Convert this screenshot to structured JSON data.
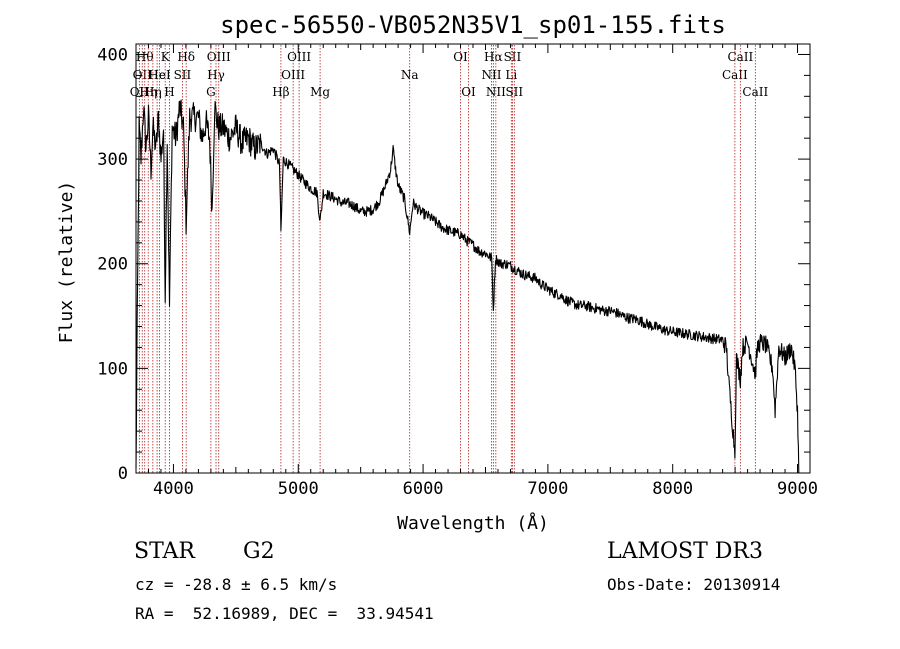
{
  "chart_data": {
    "type": "line",
    "title": "spec-56550-VB052N35V1_sp01-155.fits",
    "xlabel": "Wavelength (Å)",
    "ylabel": "Flux (relative)",
    "xlim": [
      3700,
      9100
    ],
    "ylim": [
      0,
      410
    ],
    "xticks": [
      4000,
      5000,
      6000,
      7000,
      8000,
      9000
    ],
    "yticks": [
      0,
      100,
      200,
      300,
      400
    ],
    "grid": false,
    "series": [
      {
        "name": "flux",
        "color": "#000000",
        "anchors": [
          [
            3700,
            0
          ],
          [
            3710,
            140
          ],
          [
            3725,
            330
          ],
          [
            3740,
            300
          ],
          [
            3760,
            350
          ],
          [
            3780,
            310
          ],
          [
            3800,
            340
          ],
          [
            3820,
            290
          ],
          [
            3835,
            330
          ],
          [
            3860,
            310
          ],
          [
            3880,
            340
          ],
          [
            3900,
            300
          ],
          [
            3920,
            330
          ],
          [
            3934,
            170
          ],
          [
            3950,
            320
          ],
          [
            3968,
            160
          ],
          [
            3990,
            330
          ],
          [
            4020,
            320
          ],
          [
            4050,
            350
          ],
          [
            4080,
            330
          ],
          [
            4101,
            240
          ],
          [
            4130,
            340
          ],
          [
            4160,
            340
          ],
          [
            4200,
            340
          ],
          [
            4230,
            320
          ],
          [
            4260,
            335
          ],
          [
            4290,
            320
          ],
          [
            4310,
            250
          ],
          [
            4330,
            350
          ],
          [
            4360,
            330
          ],
          [
            4400,
            330
          ],
          [
            4450,
            320
          ],
          [
            4500,
            330
          ],
          [
            4550,
            315
          ],
          [
            4600,
            320
          ],
          [
            4650,
            310
          ],
          [
            4700,
            315
          ],
          [
            4750,
            305
          ],
          [
            4800,
            310
          ],
          [
            4850,
            295
          ],
          [
            4861,
            230
          ],
          [
            4880,
            300
          ],
          [
            4920,
            295
          ],
          [
            4960,
            290
          ],
          [
            5000,
            285
          ],
          [
            5050,
            278
          ],
          [
            5100,
            272
          ],
          [
            5150,
            268
          ],
          [
            5175,
            240
          ],
          [
            5200,
            268
          ],
          [
            5250,
            265
          ],
          [
            5300,
            262
          ],
          [
            5350,
            258
          ],
          [
            5400,
            258
          ],
          [
            5450,
            255
          ],
          [
            5500,
            250
          ],
          [
            5550,
            250
          ],
          [
            5600,
            252
          ],
          [
            5650,
            260
          ],
          [
            5700,
            275
          ],
          [
            5740,
            290
          ],
          [
            5760,
            310
          ],
          [
            5780,
            290
          ],
          [
            5800,
            275
          ],
          [
            5850,
            262
          ],
          [
            5893,
            230
          ],
          [
            5920,
            258
          ],
          [
            5960,
            252
          ],
          [
            6000,
            248
          ],
          [
            6050,
            245
          ],
          [
            6100,
            240
          ],
          [
            6150,
            235
          ],
          [
            6200,
            232
          ],
          [
            6250,
            230
          ],
          [
            6300,
            228
          ],
          [
            6350,
            222
          ],
          [
            6400,
            218
          ],
          [
            6450,
            212
          ],
          [
            6500,
            210
          ],
          [
            6550,
            205
          ],
          [
            6563,
            155
          ],
          [
            6580,
            205
          ],
          [
            6620,
            200
          ],
          [
            6660,
            200
          ],
          [
            6700,
            198
          ],
          [
            6750,
            194
          ],
          [
            6800,
            190
          ],
          [
            6850,
            188
          ],
          [
            6900,
            186
          ],
          [
            6950,
            180
          ],
          [
            7000,
            176
          ],
          [
            7050,
            172
          ],
          [
            7100,
            170
          ],
          [
            7150,
            165
          ],
          [
            7200,
            162
          ],
          [
            7250,
            160
          ],
          [
            7300,
            160
          ],
          [
            7350,
            158
          ],
          [
            7400,
            157
          ],
          [
            7450,
            155
          ],
          [
            7500,
            155
          ],
          [
            7550,
            153
          ],
          [
            7600,
            150
          ],
          [
            7650,
            148
          ],
          [
            7700,
            147
          ],
          [
            7750,
            145
          ],
          [
            7800,
            142
          ],
          [
            7850,
            140
          ],
          [
            7900,
            138
          ],
          [
            7950,
            136
          ],
          [
            8000,
            135
          ],
          [
            8050,
            134
          ],
          [
            8100,
            133
          ],
          [
            8150,
            132
          ],
          [
            8200,
            131
          ],
          [
            8250,
            130
          ],
          [
            8300,
            129
          ],
          [
            8350,
            128
          ],
          [
            8400,
            127
          ],
          [
            8430,
            120
          ],
          [
            8450,
            85
          ],
          [
            8498,
            20
          ],
          [
            8510,
            110
          ],
          [
            8542,
            90
          ],
          [
            8560,
            120
          ],
          [
            8600,
            125
          ],
          [
            8662,
            95
          ],
          [
            8680,
            120
          ],
          [
            8700,
            125
          ],
          [
            8750,
            122
          ],
          [
            8800,
            100
          ],
          [
            8820,
            60
          ],
          [
            8850,
            120
          ],
          [
            8900,
            110
          ],
          [
            8950,
            120
          ],
          [
            8980,
            100
          ],
          [
            9000,
            60
          ],
          [
            9010,
            0
          ]
        ]
      }
    ],
    "lines": [
      {
        "wl": 3727,
        "label": "OII",
        "row": 3
      },
      {
        "wl": 3750,
        "label": "OII",
        "row": 2
      },
      {
        "wl": 3770,
        "label": "Hθ",
        "row": 1
      },
      {
        "wl": 3798,
        "label": "Hη",
        "row": 3
      },
      {
        "wl": 3835,
        "label": "Hη",
        "row": 3
      },
      {
        "wl": 3869,
        "label": "He",
        "row": 2
      },
      {
        "wl": 3889,
        "label": "HeI",
        "row": 2
      },
      {
        "wl": 3934,
        "label": "K",
        "row": 1
      },
      {
        "wl": 3968,
        "label": "H",
        "row": 3
      },
      {
        "wl": 4072,
        "label": "SII",
        "row": 2
      },
      {
        "wl": 4102,
        "label": "Hδ",
        "row": 1
      },
      {
        "wl": 4300,
        "label": "G",
        "row": 3
      },
      {
        "wl": 4341,
        "label": "Hγ",
        "row": 2
      },
      {
        "wl": 4363,
        "label": "OIII",
        "row": 1
      },
      {
        "wl": 4861,
        "label": "Hβ",
        "row": 3
      },
      {
        "wl": 4959,
        "label": "OIII",
        "row": 2
      },
      {
        "wl": 5007,
        "label": "OIII",
        "row": 1
      },
      {
        "wl": 5175,
        "label": "Mg",
        "row": 3
      },
      {
        "wl": 5893,
        "label": "Na",
        "row": 2
      },
      {
        "wl": 6300,
        "label": "OI",
        "row": 1
      },
      {
        "wl": 6364,
        "label": "OI",
        "row": 3
      },
      {
        "wl": 6548,
        "label": "NII",
        "row": 2
      },
      {
        "wl": 6563,
        "label": "Hα",
        "row": 1
      },
      {
        "wl": 6583,
        "label": "NII",
        "row": 3
      },
      {
        "wl": 6707,
        "label": "Li",
        "row": 2
      },
      {
        "wl": 6716,
        "label": "SII",
        "row": 1
      },
      {
        "wl": 6731,
        "label": "SII",
        "row": 3
      },
      {
        "wl": 8498,
        "label": "CaII",
        "row": 2
      },
      {
        "wl": 8542,
        "label": "CaII",
        "row": 1
      },
      {
        "wl": 8662,
        "label": "CaII",
        "row": 3
      }
    ],
    "line_color": "#b22222"
  },
  "info": {
    "class_label": "STAR",
    "subclass": "G2",
    "survey": "LAMOST DR3",
    "cz": "cz = -28.8 ± 6.5 km/s",
    "obs_date": "Obs-Date: 20130914",
    "coords": "RA =  52.16989, DEC =  33.94541"
  }
}
